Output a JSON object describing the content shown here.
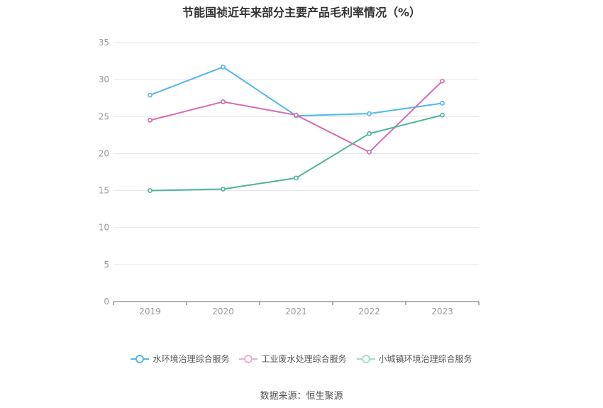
{
  "chart_data": {
    "type": "line",
    "title": "节能国祯近年来部分主要产品毛利率情况（%）",
    "categories": [
      "2019",
      "2020",
      "2021",
      "2022",
      "2023"
    ],
    "yticks": [
      "0",
      "5",
      "10",
      "15",
      "20",
      "25",
      "30",
      "35"
    ],
    "ylim": [
      0,
      35
    ],
    "grid": true,
    "legend_position": "bottom",
    "series": [
      {
        "name": "水环境治理综合服务",
        "color": "#4fb8ea",
        "values": [
          27.9,
          31.7,
          25.1,
          25.4,
          26.8
        ]
      },
      {
        "name": "工业废水处理综合服务",
        "color": "#d96ab0",
        "values": [
          24.5,
          27.0,
          25.2,
          20.2,
          29.8
        ]
      },
      {
        "name": "小城镇环境治理综合服务",
        "color": "#4bb39a",
        "values": [
          15.0,
          15.2,
          16.7,
          22.7,
          25.2
        ]
      }
    ],
    "source": "数据来源：恒生聚源"
  }
}
